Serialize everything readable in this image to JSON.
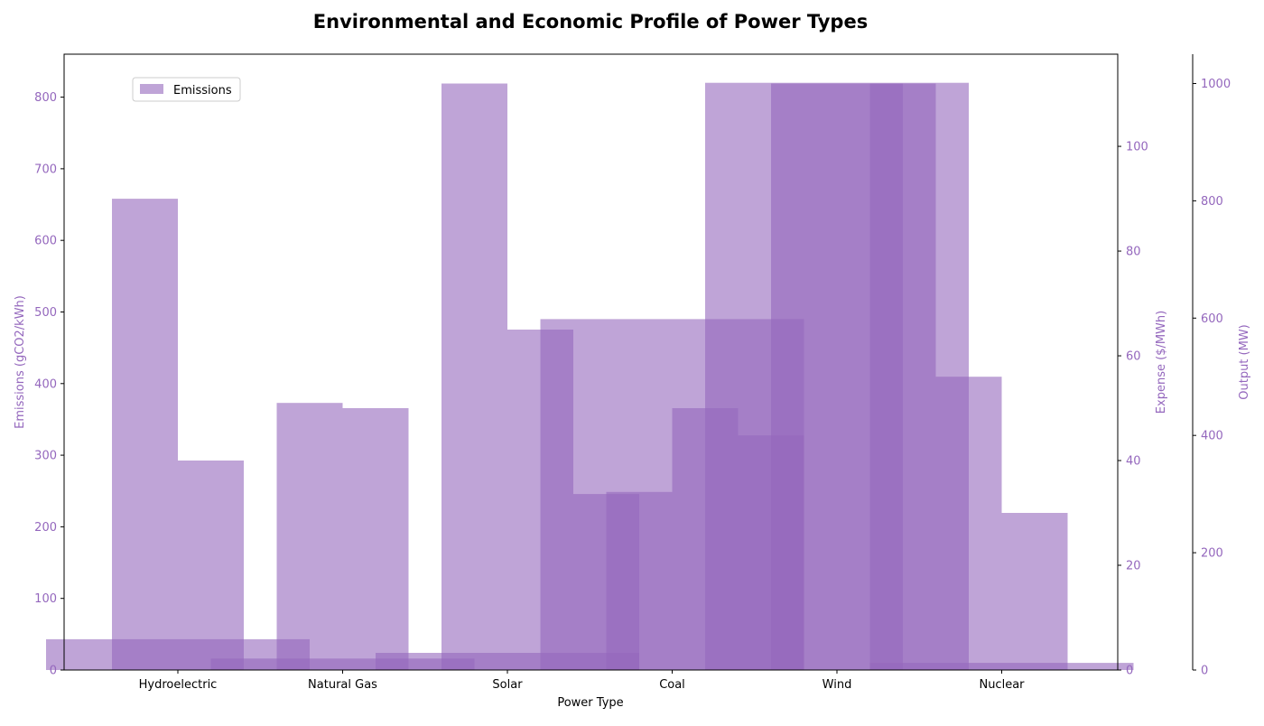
{
  "chart_data": {
    "type": "bar",
    "title": "Environmental and Economic Profile of Power Types",
    "xlabel": "Power Type",
    "categories": [
      "Hydroelectric",
      "Natural Gas",
      "Solar",
      "Coal",
      "Wind",
      "Nuclear"
    ],
    "axes": {
      "left": {
        "label": "Emissions (gCO2/kWh)",
        "ylim": [
          0,
          860
        ],
        "ticks": [
          0,
          100,
          200,
          300,
          400,
          500,
          600,
          700,
          800
        ]
      },
      "right1": {
        "label": "Expense ($/MWh)",
        "ylim": [
          0,
          117.6
        ],
        "ticks": [
          0,
          20,
          40,
          60,
          80,
          100
        ]
      },
      "right2": {
        "label": "Output (MW)",
        "ylim": [
          0,
          1050
        ],
        "ticks": [
          0,
          200,
          400,
          600,
          800,
          1000
        ]
      }
    },
    "series": [
      {
        "name": "Emissions",
        "axis": "left",
        "offset": 0,
        "width": 1.6,
        "color": "#9467bd",
        "opacity": 0.6,
        "values": [
          43,
          16,
          24,
          490,
          820,
          10
        ]
      },
      {
        "axis": "right1",
        "offset": -0.2,
        "width": 0.4,
        "color": "#9467bd",
        "opacity": 0.6,
        "values": [
          90,
          51,
          112,
          34,
          112,
          56
        ]
      },
      {
        "axis": "right1",
        "offset": 0.2,
        "width": 0.4,
        "color": "#9467bd",
        "opacity": 0.6,
        "values": [
          40,
          50,
          65,
          50,
          112,
          30
        ]
      },
      {
        "axis": "right2",
        "offset": -0.4,
        "width": 0.4,
        "color": "#9467bd",
        "opacity": 0.6,
        "values": [
          0,
          0,
          0,
          300,
          400,
          0
        ]
      },
      {
        "axis": "right2",
        "offset": 0.4,
        "width": 0.4,
        "color": "#9467bd",
        "opacity": 0.6,
        "values": [
          0,
          0,
          0,
          0,
          1000,
          0
        ]
      }
    ],
    "legend": {
      "placement": "top-left",
      "entries": [
        "Emissions"
      ]
    },
    "grid": false,
    "axis_color": "#9467bd"
  }
}
